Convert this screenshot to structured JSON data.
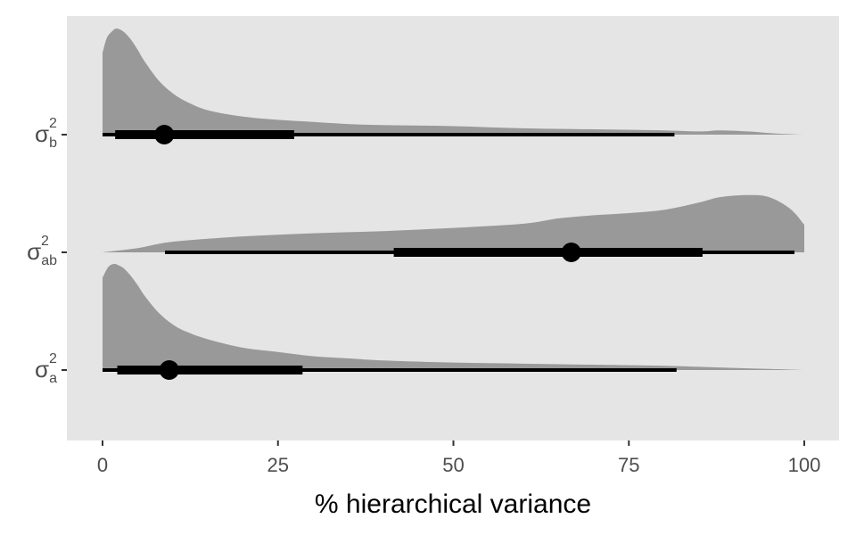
{
  "chart_data": {
    "type": "halfeye",
    "xlabel": "% hierarchical variance",
    "ylabel": "",
    "xlim": [
      0,
      100
    ],
    "x_ticks": [
      "0",
      "25",
      "50",
      "75",
      "100"
    ],
    "grid": false,
    "colors": {
      "panel": "#e5e5e5",
      "density": "#999999",
      "interval": "#000000",
      "tick_text": "#4d4d4d"
    },
    "series": [
      {
        "symbol": "σ",
        "subscript": "b",
        "superscript": "2",
        "median": 8.8,
        "interval_66": [
          1.8,
          27.3
        ],
        "interval_95": [
          0,
          81.5
        ],
        "density": {
          "x": [
            0,
            0.6,
            1.3,
            2,
            3,
            4,
            5,
            6,
            8,
            10,
            12,
            15,
            20,
            25,
            30,
            35,
            40,
            50,
            60,
            70,
            80,
            85,
            88,
            92,
            96,
            100
          ],
          "y": [
            0.77,
            0.91,
            0.97,
            1.0,
            0.97,
            0.9,
            0.8,
            0.69,
            0.51,
            0.39,
            0.31,
            0.23,
            0.17,
            0.14,
            0.12,
            0.1,
            0.09,
            0.08,
            0.06,
            0.05,
            0.04,
            0.03,
            0.04,
            0.03,
            0.01,
            0
          ]
        }
      },
      {
        "symbol": "σ",
        "subscript": "ab",
        "superscript": "2",
        "median": 66.8,
        "interval_66": [
          41.5,
          85.5
        ],
        "interval_95": [
          8.9,
          98.6
        ],
        "density": {
          "x": [
            0,
            5,
            10,
            20,
            30,
            40,
            50,
            60,
            65,
            70,
            75,
            80,
            85,
            88,
            92,
            95,
            98,
            100
          ],
          "y": [
            0,
            0.04,
            0.1,
            0.15,
            0.18,
            0.2,
            0.23,
            0.27,
            0.32,
            0.35,
            0.37,
            0.4,
            0.47,
            0.52,
            0.54,
            0.52,
            0.41,
            0.26
          ]
        }
      },
      {
        "symbol": "σ",
        "subscript": "a",
        "superscript": "2",
        "median": 9.5,
        "interval_66": [
          2.1,
          28.5
        ],
        "interval_95": [
          0,
          81.8
        ],
        "density": {
          "x": [
            0,
            0.8,
            1.6,
            2.2,
            3,
            4,
            5,
            6,
            8,
            10,
            12,
            15,
            20,
            25,
            30,
            35,
            40,
            50,
            60,
            70,
            80,
            85,
            90,
            95,
            100
          ],
          "y": [
            0.87,
            0.97,
            1.0,
            0.99,
            0.96,
            0.89,
            0.8,
            0.7,
            0.54,
            0.43,
            0.36,
            0.29,
            0.21,
            0.17,
            0.13,
            0.11,
            0.09,
            0.07,
            0.06,
            0.05,
            0.04,
            0.03,
            0.02,
            0.01,
            0
          ]
        }
      }
    ]
  }
}
